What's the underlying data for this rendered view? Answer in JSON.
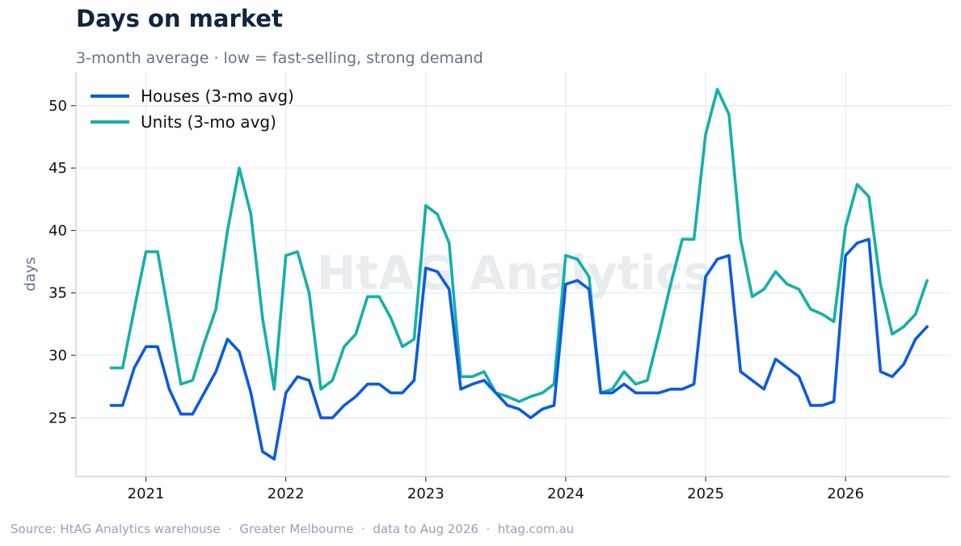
{
  "title": "Days on market",
  "subtitle": "3-month average · low = fast-selling, strong demand",
  "watermark": "HtAG Analytics",
  "source": "Source: HtAG Analytics warehouse  ·  Greater Melbourne  ·  data to Aug 2026  ·  htag.com.au",
  "chart_data": {
    "type": "line",
    "title": "Days on market",
    "subtitle": "3-month average · low = fast-selling, strong demand",
    "xlabel": "",
    "ylabel": "days",
    "x_start": "2020-10",
    "x_ticks": [
      "2021",
      "2022",
      "2023",
      "2024",
      "2025",
      "2026"
    ],
    "y_ticks": [
      25,
      30,
      35,
      40,
      45,
      50
    ],
    "xlim": [
      "2020-07",
      "2026-10"
    ],
    "ylim": [
      20.3,
      52.7
    ],
    "grid": true,
    "legend_position": "top-left",
    "series": [
      {
        "name": "Houses (3-mo avg)",
        "color": "#0b5be0",
        "values": [
          26.0,
          26.0,
          29.0,
          30.7,
          30.7,
          27.3,
          25.3,
          25.3,
          27.0,
          28.7,
          31.3,
          30.3,
          27.0,
          22.3,
          21.7,
          27.0,
          28.3,
          28.0,
          25.0,
          25.0,
          26.0,
          26.7,
          27.7,
          27.7,
          27.0,
          27.0,
          28.0,
          37.0,
          36.7,
          35.3,
          27.3,
          27.7,
          28.0,
          27.0,
          26.0,
          25.7,
          25.0,
          25.7,
          26.0,
          35.7,
          36.0,
          35.3,
          27.0,
          27.0,
          27.7,
          27.0,
          27.0,
          27.0,
          27.3,
          27.3,
          27.7,
          36.3,
          37.7,
          38.0,
          28.7,
          28.0,
          27.3,
          29.7,
          29.0,
          28.3,
          26.0,
          26.0,
          26.3,
          38.0,
          39.0,
          39.3,
          28.7,
          28.3,
          29.3,
          31.3,
          32.3
        ]
      },
      {
        "name": "Units (3-mo avg)",
        "color": "#14b0a8",
        "values": [
          29.0,
          29.0,
          33.7,
          38.3,
          38.3,
          33.0,
          27.7,
          28.0,
          31.0,
          33.7,
          40.0,
          45.0,
          41.3,
          33.0,
          27.3,
          38.0,
          38.3,
          35.0,
          27.3,
          28.0,
          30.7,
          31.7,
          34.7,
          34.7,
          33.0,
          30.7,
          31.3,
          42.0,
          41.3,
          39.0,
          28.3,
          28.3,
          28.7,
          27.0,
          26.7,
          26.3,
          26.7,
          27.0,
          27.7,
          38.0,
          37.7,
          36.3,
          27.0,
          27.3,
          28.7,
          27.7,
          28.0,
          31.7,
          35.7,
          39.3,
          39.3,
          47.7,
          51.3,
          49.3,
          39.3,
          34.7,
          35.3,
          36.7,
          35.7,
          35.3,
          33.7,
          33.3,
          32.7,
          40.3,
          43.7,
          42.7,
          35.7,
          31.7,
          32.3,
          33.3,
          36.0
        ]
      }
    ]
  }
}
